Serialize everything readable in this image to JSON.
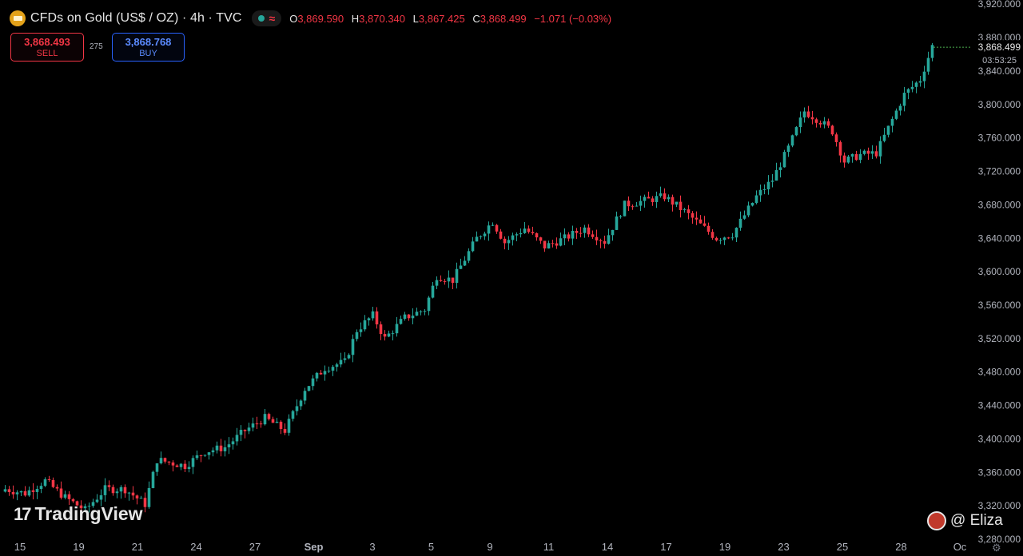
{
  "header": {
    "symbol_title": "CFDs on Gold (US$ / OZ) · 4h · TVC",
    "wave": "≈",
    "ohlc": {
      "o_label": "O",
      "o_value": "3,869.590",
      "h_label": "H",
      "h_value": "3,870.340",
      "l_label": "L",
      "l_value": "3,867.425",
      "c_label": "C",
      "c_value": "3,868.499",
      "change": "−1.071 (−0.03%)"
    }
  },
  "trade": {
    "sell_price": "3,868.493",
    "sell_label": "SELL",
    "spread": "275",
    "buy_price": "3,868.768",
    "buy_label": "BUY"
  },
  "branding": {
    "logo_text": "TradingView",
    "watermark": "@ Eliza"
  },
  "colors": {
    "up": "#26a69a",
    "down": "#f23645",
    "background": "#000000",
    "text": "#b2b5be",
    "price_tag": "#4caf50"
  },
  "chart_data": {
    "type": "candlestick",
    "title": "CFDs on Gold (US$ / OZ) · 4h · TVC",
    "ylim": [
      3260,
      3925
    ],
    "y_ticks": [
      3280,
      3320,
      3360,
      3400,
      3440,
      3480,
      3520,
      3560,
      3600,
      3640,
      3680,
      3720,
      3760,
      3800,
      3840,
      3880,
      3920
    ],
    "x_ticks": [
      "15",
      "19",
      "21",
      "24",
      "27",
      "Sep",
      "3",
      "5",
      "9",
      "11",
      "14",
      "17",
      "19",
      "23",
      "25",
      "28",
      "Oc"
    ],
    "current_price": 3868.499,
    "current_price_label": "3,868.499",
    "countdown": "03:53:25",
    "grid": false,
    "close_anchors": [
      [
        0,
        3340
      ],
      [
        5,
        3335
      ],
      [
        10,
        3350
      ],
      [
        15,
        3330
      ],
      [
        20,
        3315
      ],
      [
        25,
        3340
      ],
      [
        30,
        3340
      ],
      [
        35,
        3322
      ],
      [
        38,
        3375
      ],
      [
        45,
        3368
      ],
      [
        50,
        3385
      ],
      [
        55,
        3390
      ],
      [
        60,
        3410
      ],
      [
        65,
        3425
      ],
      [
        70,
        3410
      ],
      [
        75,
        3460
      ],
      [
        80,
        3485
      ],
      [
        85,
        3492
      ],
      [
        88,
        3530
      ],
      [
        92,
        3548
      ],
      [
        95,
        3520
      ],
      [
        100,
        3545
      ],
      [
        105,
        3555
      ],
      [
        108,
        3595
      ],
      [
        112,
        3590
      ],
      [
        118,
        3640
      ],
      [
        122,
        3660
      ],
      [
        125,
        3635
      ],
      [
        130,
        3652
      ],
      [
        135,
        3630
      ],
      [
        140,
        3640
      ],
      [
        145,
        3652
      ],
      [
        150,
        3636
      ],
      [
        155,
        3680
      ],
      [
        160,
        3685
      ],
      [
        165,
        3690
      ],
      [
        170,
        3672
      ],
      [
        173,
        3660
      ],
      [
        178,
        3640
      ],
      [
        182,
        3645
      ],
      [
        188,
        3690
      ],
      [
        192,
        3710
      ],
      [
        196,
        3748
      ],
      [
        200,
        3792
      ],
      [
        204,
        3780
      ],
      [
        207,
        3768
      ],
      [
        210,
        3732
      ],
      [
        214,
        3740
      ],
      [
        218,
        3742
      ],
      [
        222,
        3782
      ],
      [
        225,
        3812
      ],
      [
        229,
        3830
      ],
      [
        232,
        3870
      ]
    ]
  }
}
